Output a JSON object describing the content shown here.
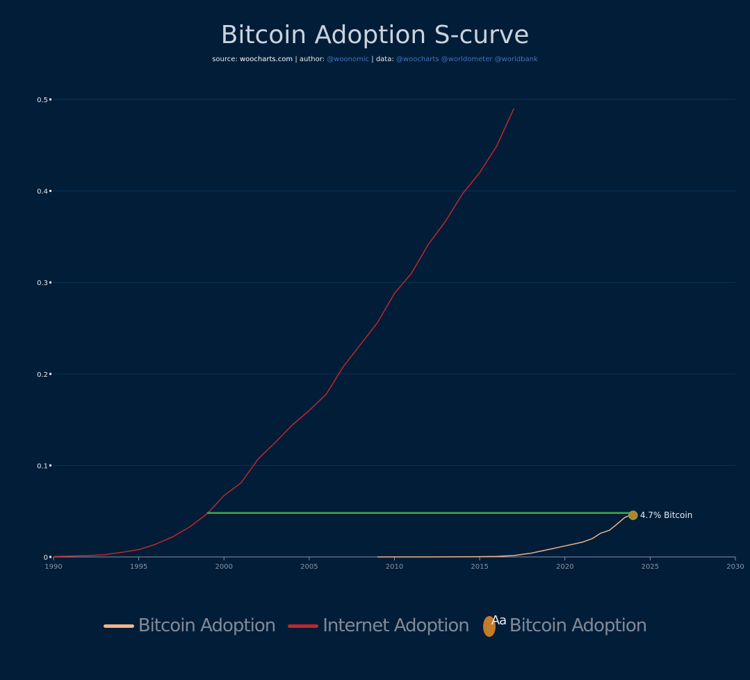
{
  "header": {
    "title": "Bitcoin Adoption S-curve",
    "source_label": "source: ",
    "source_value": "woocharts.com",
    "author_label": " | author: ",
    "author_value": "@woonomic",
    "data_label": " | data: ",
    "data_value": "@woocharts @worldometer @worldbank"
  },
  "colors": {
    "background": "#021d38",
    "bitcoin": "#f2b58a",
    "internet": "#c0262e",
    "reference": "#3daa4f",
    "marker": "#c47b2a",
    "grid": "#0b3456",
    "axis": "#8794a6"
  },
  "legend": {
    "bitcoin_line": "Bitcoin Adoption",
    "internet_line": "Internet Adoption",
    "marker_label": "Bitcoin Adoption",
    "marker_glyph": "Aa"
  },
  "chart_data": {
    "type": "line",
    "title": "Bitcoin Adoption S-curve",
    "xlim": [
      1990,
      2030
    ],
    "ylim": [
      0,
      0.5
    ],
    "x_ticks": [
      "1990",
      "1995",
      "2000",
      "2005",
      "2010",
      "2015",
      "2020",
      "2025",
      "2030"
    ],
    "y_ticks": [
      "0",
      "0.1",
      "0.2",
      "0.3",
      "0.4",
      "0.5"
    ],
    "y_tick_values": [
      0,
      0.1,
      0.2,
      0.3,
      0.4,
      0.5
    ],
    "x_tick_values": [
      1990,
      1995,
      2000,
      2005,
      2010,
      2015,
      2020,
      2025,
      2030
    ],
    "grid": true,
    "legend_position": "bottom",
    "series": [
      {
        "name": "Internet Adoption",
        "x": [
          1990,
          1991,
          1992,
          1993,
          1994,
          1995,
          1996,
          1997,
          1998,
          1999,
          2000,
          2001,
          2002,
          2003,
          2004,
          2005,
          2006,
          2007,
          2008,
          2009,
          2010,
          2011,
          2012,
          2013,
          2014,
          2015,
          2016,
          2017
        ],
        "y": [
          0.0005,
          0.001,
          0.0015,
          0.0025,
          0.005,
          0.008,
          0.014,
          0.022,
          0.033,
          0.047,
          0.067,
          0.081,
          0.107,
          0.125,
          0.144,
          0.16,
          0.178,
          0.208,
          0.232,
          0.256,
          0.288,
          0.31,
          0.342,
          0.367,
          0.397,
          0.42,
          0.449,
          0.49
        ]
      },
      {
        "name": "Bitcoin Adoption",
        "x": [
          2009,
          2012,
          2015,
          2016,
          2017,
          2018,
          2019,
          2020,
          2021,
          2021.6,
          2022.1,
          2022.6,
          2023,
          2023.5,
          2024
        ],
        "y": [
          0,
          0,
          0.0003,
          0.0006,
          0.0015,
          0.004,
          0.008,
          0.012,
          0.016,
          0.02,
          0.026,
          0.029,
          0.035,
          0.043,
          0.047
        ]
      },
      {
        "name": "Reference",
        "x": [
          1999,
          2024
        ],
        "y": [
          0.048,
          0.048
        ]
      }
    ],
    "annotations": [
      {
        "x": 2024,
        "y": 0.047,
        "text": "4.7% Bitcoin"
      }
    ]
  }
}
